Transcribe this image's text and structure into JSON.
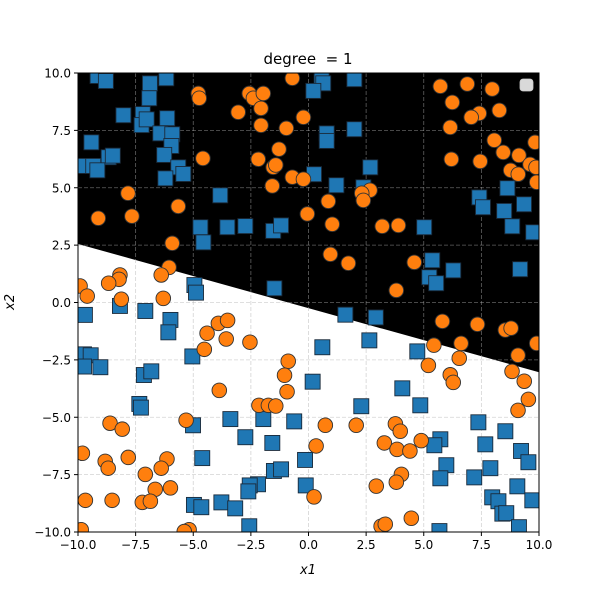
{
  "chart_data": {
    "type": "scatter",
    "title": "degree  = 1",
    "xlabel": "x1",
    "ylabel": "x2",
    "xlim": [
      -10,
      10
    ],
    "ylim": [
      -10,
      10
    ],
    "xticks": [
      "−10.0",
      "−7.5",
      "−5.0",
      "−2.5",
      "0.0",
      "2.5",
      "5.0",
      "7.5",
      "10.0"
    ],
    "yticks": [
      "−10.0",
      "−7.5",
      "−5.0",
      "−2.5",
      "0.0",
      "2.5",
      "5.0",
      "7.5",
      "10.0"
    ],
    "xtick_values": [
      -10,
      -7.5,
      -5,
      -2.5,
      0,
      2.5,
      5,
      7.5,
      10
    ],
    "ytick_values": [
      -10,
      -7.5,
      -5,
      -2.5,
      0,
      2.5,
      5,
      7.5,
      10
    ],
    "grid": true,
    "legend": {
      "placement": "top-right",
      "entries": []
    },
    "decision_boundary": {
      "type": "linear",
      "points": [
        [
          -10,
          2.55
        ],
        [
          10,
          -3.04
        ]
      ],
      "region_above_color": "#000000",
      "region_below_color": "#ffffff"
    },
    "series": [
      {
        "marker": "square",
        "color": "#1f77b4",
        "points": [
          [
            -9.15,
            9.87
          ],
          [
            -8.79,
            9.65
          ],
          [
            -6.88,
            9.55
          ],
          [
            -6.17,
            9.77
          ],
          [
            -6.91,
            8.9
          ],
          [
            -8.03,
            8.16
          ],
          [
            -7.19,
            8.21
          ],
          [
            -7.24,
            7.73
          ],
          [
            -7.02,
            7.98
          ],
          [
            -6.13,
            8.03
          ],
          [
            -6.43,
            7.37
          ],
          [
            -5.91,
            7.33
          ],
          [
            -5.95,
            6.82
          ],
          [
            -6.26,
            6.43
          ],
          [
            -9.42,
            6.98
          ],
          [
            -8.67,
            6.33
          ],
          [
            -8.49,
            6.4
          ],
          [
            -9.84,
            5.95
          ],
          [
            -9.34,
            5.95
          ],
          [
            -9.16,
            5.76
          ],
          [
            -5.65,
            5.89
          ],
          [
            -5.43,
            5.6
          ],
          [
            -6.21,
            5.41
          ],
          [
            -3.83,
            4.67
          ],
          [
            -4.69,
            3.28
          ],
          [
            -3.52,
            3.28
          ],
          [
            -2.74,
            3.33
          ],
          [
            -1.53,
            3.12
          ],
          [
            -1.19,
            3.36
          ],
          [
            -4.56,
            2.62
          ],
          [
            -4.95,
            0.76
          ],
          [
            -4.88,
            0.43
          ],
          [
            -1.48,
            0.62
          ],
          [
            -8.18,
            -0.15
          ],
          [
            0.57,
            9.77
          ],
          [
            0.64,
            9.55
          ],
          [
            0.21,
            9.22
          ],
          [
            1.99,
            9.73
          ],
          [
            1.99,
            7.55
          ],
          [
            0.79,
            7.37
          ],
          [
            0.79,
            7.04
          ],
          [
            2.68,
            5.89
          ],
          [
            0.24,
            5.59
          ],
          [
            1.21,
            5.11
          ],
          [
            2.38,
            5.02
          ],
          [
            7.41,
            4.58
          ],
          [
            7.57,
            4.15
          ],
          [
            8.63,
            4.98
          ],
          [
            8.49,
            3.99
          ],
          [
            8.84,
            3.32
          ],
          [
            9.35,
            4.28
          ],
          [
            9.75,
            3.06
          ],
          [
            5.02,
            3.28
          ],
          [
            5.37,
            1.84
          ],
          [
            6.28,
            1.4
          ],
          [
            5.24,
            1.1
          ],
          [
            5.54,
            0.84
          ],
          [
            9.18,
            1.45
          ],
          [
            -9.7,
            -0.54
          ],
          [
            -7.08,
            -0.37
          ],
          [
            -5.99,
            -0.76
          ],
          [
            -6.08,
            -1.3
          ],
          [
            -9.74,
            -2.26
          ],
          [
            -9.45,
            -2.3
          ],
          [
            -9.74,
            -2.79
          ],
          [
            -9.03,
            -2.82
          ],
          [
            -7.14,
            -3.16
          ],
          [
            -6.82,
            -3.0
          ],
          [
            -5.04,
            -2.35
          ],
          [
            -7.34,
            -4.42
          ],
          [
            -7.27,
            -4.58
          ],
          [
            -5.01,
            -5.35
          ],
          [
            -3.39,
            -5.08
          ],
          [
            -2.74,
            -5.87
          ],
          [
            -1.96,
            -5.08
          ],
          [
            -1.57,
            -6.12
          ],
          [
            -0.62,
            -5.18
          ],
          [
            -4.61,
            -6.78
          ],
          [
            -1.5,
            -7.34
          ],
          [
            -1.19,
            -7.27
          ],
          [
            -0.15,
            -6.86
          ],
          [
            -2.19,
            -7.92
          ],
          [
            -2.55,
            -7.97
          ],
          [
            -2.61,
            -8.23
          ],
          [
            -0.12,
            -7.97
          ],
          [
            -4.97,
            -8.82
          ],
          [
            -4.65,
            -8.92
          ],
          [
            -3.78,
            -8.71
          ],
          [
            -3.18,
            -8.97
          ],
          [
            -2.57,
            -9.75
          ],
          [
            0.18,
            -3.45
          ],
          [
            1.6,
            -0.53
          ],
          [
            2.92,
            -0.65
          ],
          [
            2.64,
            -1.65
          ],
          [
            0.6,
            -1.95
          ],
          [
            4.72,
            -2.13
          ],
          [
            4.07,
            -3.74
          ],
          [
            2.29,
            -4.52
          ],
          [
            4.85,
            -4.48
          ],
          [
            7.37,
            -5.22
          ],
          [
            8.54,
            -5.61
          ],
          [
            7.67,
            -6.18
          ],
          [
            9.22,
            -6.47
          ],
          [
            9.54,
            -6.96
          ],
          [
            5.72,
            -5.96
          ],
          [
            5.46,
            -6.22
          ],
          [
            5.98,
            -7.09
          ],
          [
            5.72,
            -7.66
          ],
          [
            7.19,
            -7.62
          ],
          [
            7.89,
            -7.22
          ],
          [
            9.06,
            -8.01
          ],
          [
            7.97,
            -8.49
          ],
          [
            8.24,
            -8.66
          ],
          [
            8.41,
            -9.2
          ],
          [
            8.58,
            -9.18
          ],
          [
            9.71,
            -8.62
          ],
          [
            9.13,
            -9.79
          ],
          [
            5.68,
            -9.96
          ]
        ]
      },
      {
        "marker": "circle",
        "color": "#ff7f0e",
        "points": [
          [
            -0.7,
            9.77
          ],
          [
            -4.78,
            9.11
          ],
          [
            -4.74,
            8.9
          ],
          [
            -2.57,
            9.11
          ],
          [
            -2.39,
            8.9
          ],
          [
            -1.96,
            9.11
          ],
          [
            -2.06,
            8.46
          ],
          [
            -3.05,
            8.29
          ],
          [
            -0.22,
            8.07
          ],
          [
            -2.06,
            7.72
          ],
          [
            -0.96,
            7.59
          ],
          [
            -4.58,
            6.28
          ],
          [
            -2.18,
            6.24
          ],
          [
            -1.28,
            6.68
          ],
          [
            -1.53,
            5.89
          ],
          [
            -1.42,
            5.99
          ],
          [
            -0.7,
            5.46
          ],
          [
            -0.22,
            5.37
          ],
          [
            -1.57,
            5.08
          ],
          [
            -7.83,
            4.76
          ],
          [
            -5.65,
            4.19
          ],
          [
            -9.12,
            3.67
          ],
          [
            -7.66,
            3.76
          ],
          [
            -0.05,
            3.86
          ],
          [
            -5.91,
            2.58
          ],
          [
            -6.05,
            1.53
          ],
          [
            -6.39,
            1.2
          ],
          [
            -8.18,
            1.2
          ],
          [
            -8.22,
            1.01
          ],
          [
            -8.67,
            0.84
          ],
          [
            -9.91,
            0.72
          ],
          [
            -9.6,
            0.28
          ],
          [
            -8.12,
            0.14
          ],
          [
            -6.3,
            0.18
          ],
          [
            5.72,
            9.42
          ],
          [
            6.89,
            9.52
          ],
          [
            7.97,
            9.3
          ],
          [
            6.24,
            8.72
          ],
          [
            7.41,
            8.24
          ],
          [
            7.06,
            8.07
          ],
          [
            8.28,
            8.37
          ],
          [
            6.15,
            7.63
          ],
          [
            8.06,
            7.07
          ],
          [
            8.45,
            6.54
          ],
          [
            9.13,
            6.41
          ],
          [
            9.83,
            6.98
          ],
          [
            9.61,
            6.02
          ],
          [
            9.87,
            5.89
          ],
          [
            8.77,
            5.76
          ],
          [
            9.1,
            5.59
          ],
          [
            9.9,
            5.24
          ],
          [
            6.2,
            6.24
          ],
          [
            7.45,
            6.15
          ],
          [
            2.67,
            4.89
          ],
          [
            2.31,
            4.76
          ],
          [
            2.38,
            4.45
          ],
          [
            0.86,
            4.41
          ],
          [
            1.03,
            3.41
          ],
          [
            3.2,
            3.32
          ],
          [
            3.9,
            3.36
          ],
          [
            0.95,
            2.1
          ],
          [
            1.73,
            1.71
          ],
          [
            4.59,
            1.75
          ],
          [
            3.81,
            0.53
          ],
          [
            -3.91,
            -0.91
          ],
          [
            -3.51,
            -0.78
          ],
          [
            -4.4,
            -1.34
          ],
          [
            -3.57,
            -1.59
          ],
          [
            -2.54,
            -1.73
          ],
          [
            -4.52,
            -2.04
          ],
          [
            -0.88,
            -2.56
          ],
          [
            -1.04,
            -3.17
          ],
          [
            -0.93,
            -3.89
          ],
          [
            -3.87,
            -3.83
          ],
          [
            -2.15,
            -4.48
          ],
          [
            -1.74,
            -4.48
          ],
          [
            -1.42,
            -4.51
          ],
          [
            -5.31,
            -5.13
          ],
          [
            -8.61,
            -5.26
          ],
          [
            -8.08,
            -5.52
          ],
          [
            -9.81,
            -6.57
          ],
          [
            -8.82,
            -6.92
          ],
          [
            -8.69,
            -7.22
          ],
          [
            -7.82,
            -6.75
          ],
          [
            -6.14,
            -6.82
          ],
          [
            -6.39,
            -7.22
          ],
          [
            -7.08,
            -7.49
          ],
          [
            -6.65,
            -8.14
          ],
          [
            -5.99,
            -8.08
          ],
          [
            -9.68,
            -8.62
          ],
          [
            -8.52,
            -8.62
          ],
          [
            -7.21,
            -8.71
          ],
          [
            -6.86,
            -8.66
          ],
          [
            -9.86,
            -9.9
          ],
          [
            -5.18,
            -9.9
          ],
          [
            -5.39,
            -9.98
          ],
          [
            5.81,
            -0.82
          ],
          [
            7.33,
            -0.95
          ],
          [
            8.54,
            -1.2
          ],
          [
            8.79,
            -1.12
          ],
          [
            9.9,
            -1.78
          ],
          [
            5.44,
            -1.86
          ],
          [
            6.62,
            -1.78
          ],
          [
            6.54,
            -2.43
          ],
          [
            9.09,
            -2.3
          ],
          [
            5.2,
            -2.74
          ],
          [
            6.15,
            -3.15
          ],
          [
            6.28,
            -3.48
          ],
          [
            8.83,
            -3.0
          ],
          [
            9.36,
            -3.43
          ],
          [
            9.54,
            -4.22
          ],
          [
            9.09,
            -4.7
          ],
          [
            0.73,
            -5.35
          ],
          [
            2.07,
            -5.35
          ],
          [
            3.77,
            -5.29
          ],
          [
            3.98,
            -5.61
          ],
          [
            3.29,
            -6.12
          ],
          [
            3.84,
            -6.4
          ],
          [
            4.4,
            -6.47
          ],
          [
            4.89,
            -6.02
          ],
          [
            0.33,
            -6.25
          ],
          [
            4.03,
            -7.49
          ],
          [
            3.81,
            -7.83
          ],
          [
            2.94,
            -8.0
          ],
          [
            0.24,
            -8.47
          ],
          [
            4.46,
            -9.4
          ],
          [
            3.15,
            -9.75
          ],
          [
            3.33,
            -9.66
          ]
        ]
      }
    ]
  }
}
